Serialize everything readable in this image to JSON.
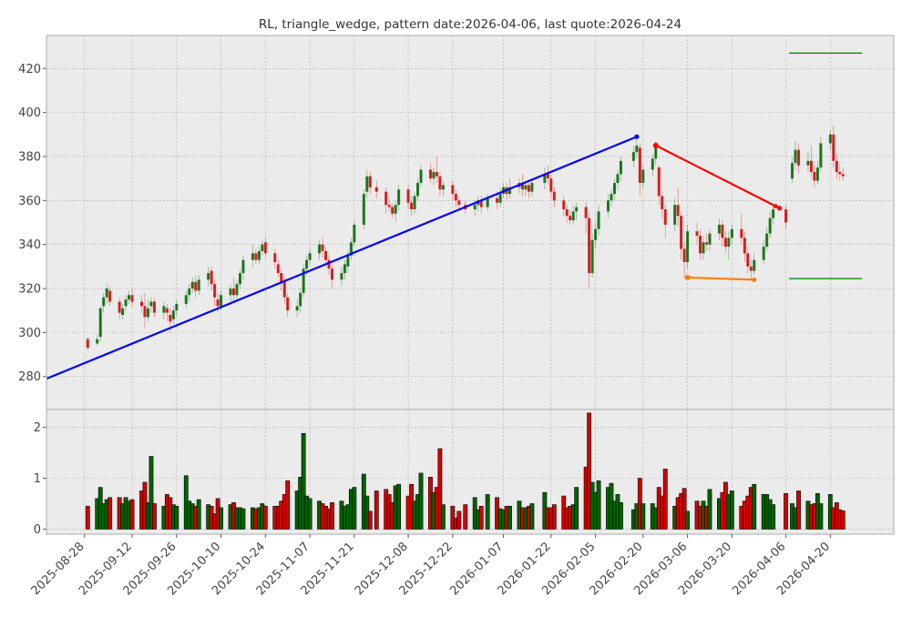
{
  "chart_data": {
    "type": "candlestick",
    "title": "RL, triangle_wedge, pattern date:2026-04-06, last quote:2026-04-24",
    "price_yticks": [
      280,
      300,
      320,
      340,
      360,
      380,
      400,
      420
    ],
    "price_ylim": [
      265,
      435
    ],
    "volume_yticks": [
      0,
      1,
      2
    ],
    "volume_ylim": [
      -0.1,
      2.35
    ],
    "x_range": [
      "2025-08-16",
      "2026-05-10"
    ],
    "date_ticks": [
      "2025-08-28",
      "2025-09-12",
      "2025-09-26",
      "2025-10-10",
      "2025-10-24",
      "2025-11-07",
      "2025-11-21",
      "2025-12-08",
      "2025-12-22",
      "2026-01-07",
      "2026-01-22",
      "2026-02-05",
      "2026-02-20",
      "2026-03-06",
      "2026-03-20",
      "2026-04-06",
      "2026-04-20"
    ],
    "colors": {
      "up": "#006400",
      "down": "#d40000",
      "trend_line": "#0000ff",
      "wedge_line": "#ff0000",
      "support_line": "#ff7f0e",
      "level_lines": "#008000",
      "grid": "#b0b0b0",
      "panel": "#ebebeb"
    },
    "grid": true,
    "candles": [
      [
        "2025-08-29",
        297,
        293,
        298,
        292,
        0.45
      ],
      [
        "2025-09-01",
        295,
        297,
        299,
        294,
        0.6
      ],
      [
        "2025-09-02",
        298,
        311,
        312,
        296,
        0.82
      ],
      [
        "2025-09-03",
        312,
        316,
        318,
        309,
        0.5
      ],
      [
        "2025-09-04",
        316,
        320,
        322,
        313,
        0.58
      ],
      [
        "2025-09-05",
        319,
        314,
        321,
        312,
        0.62
      ],
      [
        "2025-09-08",
        314,
        309,
        316,
        306,
        0.62
      ],
      [
        "2025-09-09",
        308,
        311,
        313,
        306,
        0.5
      ],
      [
        "2025-09-10",
        312,
        315,
        317,
        310,
        0.62
      ],
      [
        "2025-09-11",
        315,
        317,
        319,
        313,
        0.55
      ],
      [
        "2025-09-12",
        317,
        314,
        320,
        312,
        0.58
      ],
      [
        "2025-09-15",
        314,
        312,
        317,
        309,
        0.75
      ],
      [
        "2025-09-16",
        312,
        307,
        318,
        302,
        0.92
      ],
      [
        "2025-09-17",
        307,
        311,
        315,
        305,
        0.52
      ],
      [
        "2025-09-18",
        312,
        314,
        316,
        309,
        1.43
      ],
      [
        "2025-09-19",
        314,
        309,
        316,
        307,
        0.5
      ],
      [
        "2025-09-22",
        309,
        312,
        314,
        306,
        0.45
      ],
      [
        "2025-09-23",
        311,
        309,
        313,
        305,
        0.68
      ],
      [
        "2025-09-24",
        308,
        305,
        311,
        300,
        0.62
      ],
      [
        "2025-09-25",
        306,
        310,
        312,
        304,
        0.48
      ],
      [
        "2025-09-26",
        310,
        313,
        315,
        307,
        0.45
      ],
      [
        "2025-09-29",
        313,
        317,
        319,
        311,
        1.05
      ],
      [
        "2025-09-30",
        317,
        320,
        322,
        314,
        0.55
      ],
      [
        "2025-10-01",
        320,
        323,
        325,
        318,
        0.5
      ],
      [
        "2025-10-02",
        323,
        319,
        326,
        316,
        0.45
      ],
      [
        "2025-10-03",
        319,
        324,
        326,
        317,
        0.58
      ],
      [
        "2025-10-06",
        324,
        327,
        330,
        321,
        0.48
      ],
      [
        "2025-10-07",
        328,
        322,
        330,
        319,
        0.45
      ],
      [
        "2025-10-08",
        322,
        316,
        324,
        312,
        0.3
      ],
      [
        "2025-10-09",
        315,
        312,
        318,
        309,
        0.6
      ],
      [
        "2025-10-10",
        312,
        317,
        319,
        310,
        0.42
      ],
      [
        "2025-10-13",
        317,
        320,
        322,
        314,
        0.48
      ],
      [
        "2025-10-14",
        320,
        317,
        325,
        314,
        0.52
      ],
      [
        "2025-10-15",
        317,
        322,
        324,
        315,
        0.42
      ],
      [
        "2025-10-16",
        322,
        327,
        329,
        320,
        0.42
      ],
      [
        "2025-10-17",
        327,
        333,
        335,
        324,
        0.4
      ],
      [
        "2025-10-20",
        333,
        336,
        340,
        330,
        0.42
      ],
      [
        "2025-10-21",
        336,
        333,
        338,
        331,
        0.4
      ],
      [
        "2025-10-22",
        333,
        337,
        339,
        331,
        0.42
      ],
      [
        "2025-10-23",
        337,
        340,
        342,
        335,
        0.5
      ],
      [
        "2025-10-24",
        341,
        336,
        343,
        334,
        0.45
      ],
      [
        "2025-10-27",
        336,
        332,
        338,
        329,
        0.45
      ],
      [
        "2025-10-28",
        331,
        327,
        333,
        325,
        0.45
      ],
      [
        "2025-10-29",
        327,
        323,
        330,
        319,
        0.55
      ],
      [
        "2025-10-30",
        323,
        316,
        325,
        313,
        0.68
      ],
      [
        "2025-10-31",
        316,
        310,
        318,
        307,
        0.95
      ],
      [
        "2025-11-03",
        310,
        312,
        315,
        307,
        0.75
      ],
      [
        "2025-11-04",
        312,
        318,
        320,
        309,
        1.02
      ],
      [
        "2025-11-05",
        318,
        329,
        331,
        316,
        1.88
      ],
      [
        "2025-11-06",
        329,
        333,
        335,
        326,
        0.65
      ],
      [
        "2025-11-07",
        333,
        336,
        338,
        331,
        0.6
      ],
      [
        "2025-11-10",
        336,
        340,
        342,
        333,
        0.55
      ],
      [
        "2025-11-11",
        340,
        337,
        343,
        334,
        0.5
      ],
      [
        "2025-11-12",
        337,
        333,
        339,
        330,
        0.45
      ],
      [
        "2025-11-13",
        333,
        329,
        335,
        326,
        0.4
      ],
      [
        "2025-11-14",
        329,
        324,
        331,
        320,
        0.52
      ],
      [
        "2025-11-17",
        324,
        327,
        330,
        321,
        0.55
      ],
      [
        "2025-11-18",
        327,
        331,
        333,
        324,
        0.45
      ],
      [
        "2025-11-19",
        330,
        335,
        337,
        327,
        0.48
      ],
      [
        "2025-11-20",
        335,
        341,
        343,
        333,
        0.78
      ],
      [
        "2025-11-21",
        341,
        349,
        351,
        339,
        0.82
      ],
      [
        "2025-11-24",
        349,
        363,
        365,
        347,
        1.08
      ],
      [
        "2025-11-25",
        364,
        371,
        374,
        361,
        0.65
      ],
      [
        "2025-11-26",
        371,
        366,
        373,
        363,
        0.35
      ],
      [
        "2025-11-28",
        366,
        364,
        369,
        361,
        0.75
      ],
      [
        "2025-12-01",
        364,
        358,
        366,
        354,
        0.78
      ],
      [
        "2025-12-02",
        358,
        357,
        361,
        355,
        0.68
      ],
      [
        "2025-12-03",
        357,
        354,
        359,
        352,
        0.52
      ],
      [
        "2025-12-04",
        354,
        358,
        360,
        350,
        0.85
      ],
      [
        "2025-12-05",
        358,
        365,
        367,
        355,
        0.88
      ],
      [
        "2025-12-08",
        365,
        359,
        367,
        356,
        0.65
      ],
      [
        "2025-12-09",
        359,
        356,
        362,
        353,
        0.88
      ],
      [
        "2025-12-10",
        356,
        362,
        364,
        354,
        0.55
      ],
      [
        "2025-12-11",
        362,
        368,
        370,
        360,
        0.68
      ],
      [
        "2025-12-12",
        368,
        374,
        376,
        366,
        1.1
      ],
      [
        "2025-12-15",
        374,
        370,
        377,
        368,
        1.02
      ],
      [
        "2025-12-16",
        370,
        373,
        375,
        367,
        0.72
      ],
      [
        "2025-12-17",
        373,
        371,
        380,
        368,
        0.82
      ],
      [
        "2025-12-18",
        371,
        365,
        373,
        362,
        1.58
      ],
      [
        "2025-12-19",
        365,
        367,
        369,
        362,
        0.48
      ],
      [
        "2025-12-22",
        367,
        363,
        369,
        360,
        0.45
      ],
      [
        "2025-12-23",
        363,
        360,
        365,
        357,
        0.22
      ],
      [
        "2025-12-24",
        360,
        358,
        362,
        356,
        0.35
      ],
      [
        "2025-12-26",
        358,
        356,
        360,
        354,
        0.48
      ],
      [
        "2025-12-29",
        356,
        358,
        360,
        353,
        0.62
      ],
      [
        "2025-12-30",
        358,
        360,
        362,
        355,
        0.38
      ],
      [
        "2025-12-31",
        360,
        357,
        362,
        354,
        0.45
      ],
      [
        "2026-01-02",
        357,
        361,
        363,
        355,
        0.68
      ],
      [
        "2026-01-05",
        361,
        359,
        364,
        356,
        0.62
      ],
      [
        "2026-01-06",
        359,
        363,
        366,
        357,
        0.4
      ],
      [
        "2026-01-07",
        363,
        366,
        368,
        361,
        0.38
      ],
      [
        "2026-01-08",
        366,
        363,
        368,
        360,
        0.45
      ],
      [
        "2026-01-09",
        363,
        366,
        370,
        361,
        0.45
      ],
      [
        "2026-01-12",
        366,
        368,
        370,
        363,
        0.55
      ],
      [
        "2026-01-13",
        368,
        365,
        372,
        362,
        0.42
      ],
      [
        "2026-01-14",
        365,
        367,
        369,
        362,
        0.42
      ],
      [
        "2026-01-15",
        367,
        364,
        369,
        361,
        0.45
      ],
      [
        "2026-01-16",
        364,
        368,
        370,
        362,
        0.5
      ],
      [
        "2026-01-20",
        368,
        372,
        375,
        365,
        0.72
      ],
      [
        "2026-01-21",
        372,
        370,
        376,
        367,
        0.42
      ],
      [
        "2026-01-22",
        370,
        364,
        372,
        361,
        0.42
      ],
      [
        "2026-01-23",
        364,
        360,
        366,
        357,
        0.48
      ],
      [
        "2026-01-26",
        360,
        356,
        362,
        353,
        0.65
      ],
      [
        "2026-01-27",
        356,
        353,
        358,
        350,
        0.42
      ],
      [
        "2026-01-28",
        353,
        351,
        356,
        349,
        0.45
      ],
      [
        "2026-01-29",
        351,
        355,
        358,
        349,
        0.48
      ],
      [
        "2026-01-30",
        355,
        357,
        359,
        351,
        0.82
      ],
      [
        "2026-02-02",
        357,
        352,
        359,
        345,
        1.22
      ],
      [
        "2026-02-03",
        352,
        327,
        355,
        320,
        2.28
      ],
      [
        "2026-02-04",
        327,
        342,
        345,
        325,
        0.92
      ],
      [
        "2026-02-05",
        342,
        347,
        350,
        338,
        0.72
      ],
      [
        "2026-02-06",
        347,
        355,
        358,
        344,
        0.95
      ],
      [
        "2026-02-09",
        355,
        360,
        363,
        352,
        0.82
      ],
      [
        "2026-02-10",
        360,
        363,
        365,
        357,
        0.9
      ],
      [
        "2026-02-11",
        363,
        368,
        370,
        360,
        0.55
      ],
      [
        "2026-02-12",
        368,
        372,
        374,
        365,
        0.68
      ],
      [
        "2026-02-13",
        372,
        378,
        380,
        369,
        0.52
      ],
      [
        "2026-02-17",
        378,
        382,
        385,
        375,
        0.38
      ],
      [
        "2026-02-18",
        382,
        385,
        389,
        379,
        0.5
      ],
      [
        "2026-02-19",
        384,
        368,
        386,
        362,
        1.0
      ],
      [
        "2026-02-20",
        368,
        374,
        376,
        365,
        0.5
      ],
      [
        "2026-02-23",
        374,
        379,
        381,
        371,
        0.5
      ],
      [
        "2026-02-24",
        379,
        385,
        387,
        376,
        0.42
      ],
      [
        "2026-02-25",
        375,
        362,
        376,
        358,
        0.82
      ],
      [
        "2026-02-26",
        362,
        356,
        364,
        352,
        0.65
      ],
      [
        "2026-02-27",
        356,
        349,
        358,
        343,
        1.18
      ],
      [
        "2026-03-02",
        349,
        358,
        361,
        346,
        0.45
      ],
      [
        "2026-03-03",
        358,
        353,
        366,
        348,
        0.62
      ],
      [
        "2026-03-04",
        353,
        338,
        355,
        333,
        0.7
      ],
      [
        "2026-03-05",
        338,
        332,
        341,
        325,
        0.8
      ],
      [
        "2026-03-06",
        332,
        346,
        349,
        329,
        0.35
      ],
      [
        "2026-03-09",
        346,
        344,
        350,
        340,
        0.55
      ],
      [
        "2026-03-10",
        344,
        336,
        347,
        333,
        0.45
      ],
      [
        "2026-03-11",
        336,
        341,
        344,
        333,
        0.55
      ],
      [
        "2026-03-12",
        341,
        340,
        345,
        337,
        0.45
      ],
      [
        "2026-03-13",
        340,
        345,
        347,
        337,
        0.78
      ],
      [
        "2026-03-16",
        345,
        349,
        352,
        342,
        0.6
      ],
      [
        "2026-03-17",
        349,
        343,
        351,
        339,
        0.72
      ],
      [
        "2026-03-18",
        343,
        339,
        346,
        336,
        0.92
      ],
      [
        "2026-03-19",
        339,
        343,
        346,
        333,
        0.68
      ],
      [
        "2026-03-20",
        343,
        347,
        349,
        340,
        0.75
      ],
      [
        "2026-03-23",
        347,
        343,
        354,
        340,
        0.45
      ],
      [
        "2026-03-24",
        343,
        336,
        346,
        332,
        0.55
      ],
      [
        "2026-03-25",
        336,
        330,
        339,
        327,
        0.65
      ],
      [
        "2026-03-26",
        330,
        328,
        333,
        324,
        0.82
      ],
      [
        "2026-03-27",
        328,
        333,
        336,
        326,
        0.88
      ],
      [
        "2026-03-30",
        333,
        339,
        342,
        331,
        0.68
      ],
      [
        "2026-03-31",
        339,
        345,
        348,
        337,
        0.68
      ],
      [
        "2026-04-01",
        345,
        352,
        355,
        343,
        0.58
      ],
      [
        "2026-04-02",
        352,
        356,
        358,
        349,
        0.48
      ],
      [
        "2026-04-06",
        356,
        350,
        358,
        347,
        0.7
      ],
      [
        "2026-04-08",
        370,
        377,
        380,
        368,
        0.5
      ],
      [
        "2026-04-09",
        377,
        383,
        387,
        374,
        0.42
      ],
      [
        "2026-04-10",
        383,
        376,
        386,
        372,
        0.75
      ],
      [
        "2026-04-13",
        376,
        378,
        382,
        373,
        0.55
      ],
      [
        "2026-04-14",
        378,
        373,
        385,
        370,
        0.48
      ],
      [
        "2026-04-15",
        373,
        369,
        376,
        366,
        0.5
      ],
      [
        "2026-04-16",
        369,
        375,
        378,
        367,
        0.7
      ],
      [
        "2026-04-17",
        375,
        386,
        389,
        373,
        0.5
      ],
      [
        "2026-04-20",
        386,
        390,
        392,
        383,
        0.68
      ],
      [
        "2026-04-21",
        390,
        378,
        394,
        375,
        0.42
      ],
      [
        "2026-04-22",
        378,
        373,
        381,
        370,
        0.52
      ],
      [
        "2026-04-23",
        373,
        372,
        377,
        369,
        0.38
      ],
      [
        "2026-04-24",
        372,
        371,
        375,
        369,
        0.36
      ]
    ],
    "pattern_lines": [
      {
        "name": "trend",
        "color": "#0000ff",
        "points": [
          [
            "2025-08-16",
            279
          ],
          [
            "2026-02-18",
            389
          ]
        ],
        "markers": "end"
      },
      {
        "name": "upper",
        "color": "#ff0000",
        "points": [
          [
            "2026-02-24",
            385
          ],
          [
            "2026-04-04",
            356.5
          ]
        ],
        "markers": "both",
        "arrow": true
      },
      {
        "name": "lower",
        "color": "#ff7f0e",
        "points": [
          [
            "2026-03-06",
            325
          ],
          [
            "2026-03-27",
            324
          ]
        ],
        "markers": "both"
      }
    ],
    "level_lines": [
      {
        "y": 427,
        "from": "2026-04-07",
        "to": "2026-04-30",
        "color": "#008000"
      },
      {
        "y": 324.5,
        "from": "2026-04-07",
        "to": "2026-04-30",
        "color": "#008000"
      }
    ]
  }
}
